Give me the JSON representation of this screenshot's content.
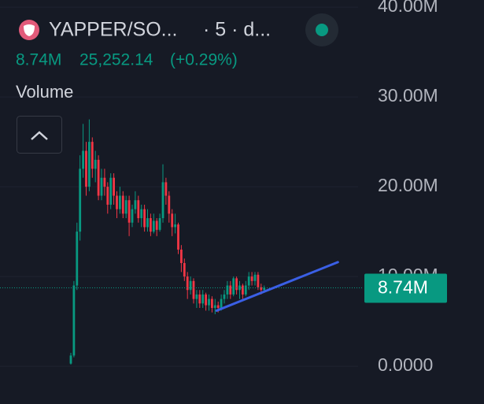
{
  "header": {
    "symbol": "YAPPER/SO...",
    "interval": "· 5 · d...",
    "price": "25,252.14",
    "change": "(+0.29%)",
    "pane": "Volume"
  },
  "chart_data": {
    "type": "candlestick",
    "open": [
      300000.0,
      1200000.0,
      9000000.0,
      15000000.0,
      22000000.0,
      24000000.0,
      20000000.0,
      25000000.0,
      22000000.0,
      23000000.0,
      19000000.0,
      21000000.0,
      20000000.0,
      18000000.0,
      21000000.0,
      19000000.0,
      17500000.0,
      19000000.0,
      17000000.0,
      18500000.0,
      16000000.0,
      17500000.0,
      18500000.0,
      16500000.0,
      17500000.0,
      15500000.0,
      16500000.0,
      15000000.0,
      16200000.0,
      15200000.0,
      16500000.0,
      20500000.0,
      19000000.0,
      17000000.0,
      15500000.0,
      15800000.0,
      13000000.0,
      11500000.0,
      10000000.0,
      8500000.0,
      9500000.0,
      7500000.0,
      8000000.0,
      7000000.0,
      8000000.0,
      6800000.0,
      7500000.0,
      6500000.0,
      6800000.0,
      6500000.0,
      7500000.0,
      8000000.0,
      9000000.0,
      8000000.0,
      9800000.0,
      8500000.0,
      9000000.0,
      8000000.0,
      9000000.0,
      10000000.0,
      9500000.0,
      10200000.0,
      8800000.0,
      8500000.0
    ],
    "high": [
      1500000.0,
      9500000.0,
      16000000.0,
      23500000.0,
      27000000.0,
      25000000.0,
      27500000.0,
      25500000.0,
      24000000.0,
      23500000.0,
      22000000.0,
      22000000.0,
      20500000.0,
      21500000.0,
      21500000.0,
      19500000.0,
      20000000.0,
      19500000.0,
      19000000.0,
      19000000.0,
      18000000.0,
      19500000.0,
      19000000.0,
      18000000.0,
      18000000.0,
      17500000.0,
      17000000.0,
      17000000.0,
      16500000.0,
      17000000.0,
      22500000.0,
      21000000.0,
      19500000.0,
      17500000.0,
      17000000.0,
      16000000.0,
      13500000.0,
      12000000.0,
      10500000.0,
      10000000.0,
      9800000.0,
      8500000.0,
      8500000.0,
      8500000.0,
      8200000.0,
      8000000.0,
      7800000.0,
      7500000.0,
      7200000.0,
      8000000.0,
      8500000.0,
      9500000.0,
      9500000.0,
      10000000.0,
      10000000.0,
      9500000.0,
      9200000.0,
      9500000.0,
      10500000.0,
      10500000.0,
      10500000.0,
      10500000.0,
      9200000.0,
      9000000.0
    ],
    "low": [
      200000.0,
      1000000.0,
      8500000.0,
      14000000.0,
      21000000.0,
      19000000.0,
      19500000.0,
      21000000.0,
      20500000.0,
      18500000.0,
      18500000.0,
      19000000.0,
      17000000.0,
      17500000.0,
      18000000.0,
      16500000.0,
      17000000.0,
      16500000.0,
      16500000.0,
      14500000.0,
      15500000.0,
      17000000.0,
      16000000.0,
      15500000.0,
      15000000.0,
      15000000.0,
      14500000.0,
      14800000.0,
      14500000.0,
      15000000.0,
      16000000.0,
      18000000.0,
      16000000.0,
      14500000.0,
      14800000.0,
      12500000.0,
      10500000.0,
      9500000.0,
      7500000.0,
      8000000.0,
      7000000.0,
      6500000.0,
      6500000.0,
      6500000.0,
      6200000.0,
      6200000.0,
      6000000.0,
      5800000.0,
      6000000.0,
      6200000.0,
      7000000.0,
      7500000.0,
      7500000.0,
      7800000.0,
      8000000.0,
      7500000.0,
      7500000.0,
      7800000.0,
      8500000.0,
      9000000.0,
      9000000.0,
      8500000.0,
      8000000.0,
      8200000.0
    ],
    "close": [
      1200000.0,
      9000000.0,
      15000000.0,
      22000000.0,
      24000000.0,
      20000000.0,
      25000000.0,
      22000000.0,
      23000000.0,
      19000000.0,
      21000000.0,
      20000000.0,
      18000000.0,
      21000000.0,
      19000000.0,
      17500000.0,
      19000000.0,
      17000000.0,
      18500000.0,
      16000000.0,
      17500000.0,
      18500000.0,
      16500000.0,
      17500000.0,
      15500000.0,
      16500000.0,
      15000000.0,
      16200000.0,
      15200000.0,
      16500000.0,
      20500000.0,
      19000000.0,
      17000000.0,
      15500000.0,
      15800000.0,
      13000000.0,
      11500000.0,
      10000000.0,
      8500000.0,
      9500000.0,
      7500000.0,
      8000000.0,
      7000000.0,
      8000000.0,
      6800000.0,
      7500000.0,
      6500000.0,
      6800000.0,
      6500000.0,
      7500000.0,
      8000000.0,
      9000000.0,
      8000000.0,
      9800000.0,
      8500000.0,
      9000000.0,
      8000000.0,
      9000000.0,
      10000000.0,
      9500000.0,
      10200000.0,
      8800000.0,
      8500000.0,
      8740000.0
    ],
    "up_color": "#089981",
    "down_color": "#f23645",
    "current": {
      "value": 8740000.0,
      "label": "8.74M"
    },
    "trendline": {
      "x": [
        47.5,
        87
      ],
      "values": [
        6200000.0,
        11600000.0
      ],
      "color": "#3a5fe5"
    },
    "ylim": [
      -4200000.0,
      40800000.0
    ],
    "yticks": [
      {
        "value": 0,
        "label": "0.0000"
      },
      {
        "value": 10000000.0,
        "label": "10.00M"
      },
      {
        "value": 20000000.0,
        "label": "20.00M"
      },
      {
        "value": 30000000.0,
        "label": "30.00M"
      },
      {
        "value": 40000000.0,
        "label": "40.00M"
      }
    ],
    "grid": true
  }
}
